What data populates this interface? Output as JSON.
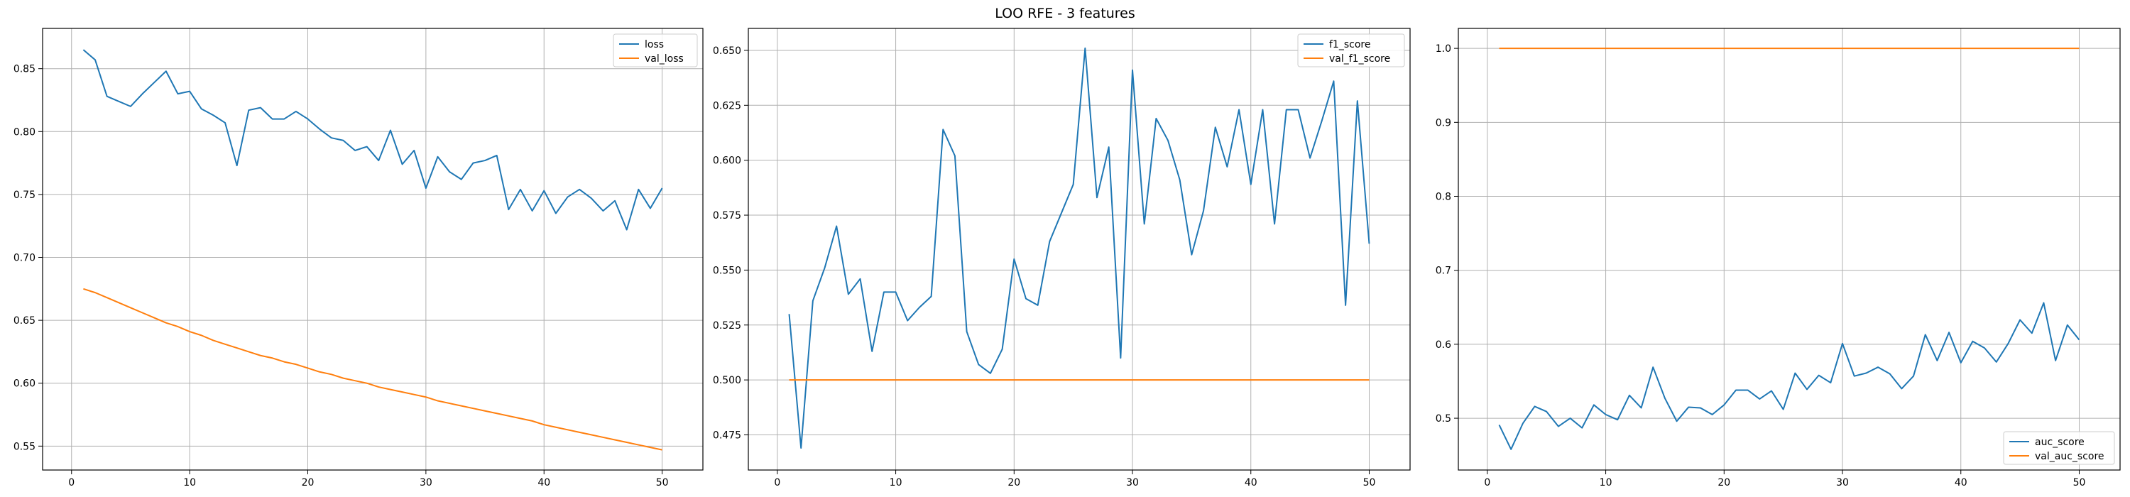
{
  "figure": {
    "title": "LOO RFE - 3 features"
  },
  "colors": {
    "series_blue": "#1f77b4",
    "series_orange": "#ff7f0e",
    "grid": "#b0b0b0",
    "axes": "#000000"
  },
  "chart_data": [
    {
      "type": "line",
      "title": "",
      "xlabel": "",
      "ylabel": "",
      "xlim": [
        -2.45,
        53.45
      ],
      "ylim": [
        0.531,
        0.882
      ],
      "xticks": [
        0,
        10,
        20,
        30,
        40,
        50
      ],
      "yticks": [
        0.55,
        0.6,
        0.65,
        0.7,
        0.75,
        0.8,
        0.85
      ],
      "ytick_labels": [
        "0.55",
        "0.60",
        "0.65",
        "0.70",
        "0.75",
        "0.80",
        "0.85"
      ],
      "grid": true,
      "legend_position": "upper right",
      "x": [
        1,
        2,
        3,
        4,
        5,
        6,
        7,
        8,
        9,
        10,
        11,
        12,
        13,
        14,
        15,
        16,
        17,
        18,
        19,
        20,
        21,
        22,
        23,
        24,
        25,
        26,
        27,
        28,
        29,
        30,
        31,
        32,
        33,
        34,
        35,
        36,
        37,
        38,
        39,
        40,
        41,
        42,
        43,
        44,
        45,
        46,
        47,
        48,
        49,
        50
      ],
      "series": [
        {
          "name": "loss",
          "color": "#1f77b4",
          "values": [
            0.865,
            0.857,
            0.828,
            0.824,
            0.82,
            0.83,
            0.839,
            0.848,
            0.83,
            0.832,
            0.818,
            0.813,
            0.807,
            0.773,
            0.817,
            0.819,
            0.81,
            0.81,
            0.816,
            0.81,
            0.802,
            0.795,
            0.793,
            0.785,
            0.788,
            0.777,
            0.801,
            0.774,
            0.785,
            0.755,
            0.78,
            0.768,
            0.762,
            0.775,
            0.777,
            0.781,
            0.738,
            0.754,
            0.737,
            0.753,
            0.735,
            0.748,
            0.754,
            0.747,
            0.737,
            0.745,
            0.722,
            0.754,
            0.739,
            0.755
          ]
        },
        {
          "name": "val_loss",
          "color": "#ff7f0e",
          "values": [
            0.675,
            0.672,
            0.668,
            0.664,
            0.66,
            0.656,
            0.652,
            0.648,
            0.645,
            0.641,
            0.638,
            0.634,
            0.631,
            0.628,
            0.625,
            0.622,
            0.62,
            0.617,
            0.615,
            0.612,
            0.609,
            0.607,
            0.604,
            0.602,
            0.6,
            0.597,
            0.595,
            0.593,
            0.591,
            0.589,
            0.586,
            0.584,
            0.582,
            0.58,
            0.578,
            0.576,
            0.574,
            0.572,
            0.57,
            0.567,
            0.565,
            0.563,
            0.561,
            0.559,
            0.557,
            0.555,
            0.553,
            0.551,
            0.549,
            0.547
          ]
        }
      ]
    },
    {
      "type": "line",
      "title": "",
      "xlabel": "",
      "ylabel": "",
      "xlim": [
        -2.45,
        53.45
      ],
      "ylim": [
        0.459,
        0.66
      ],
      "xticks": [
        0,
        10,
        20,
        30,
        40,
        50
      ],
      "yticks": [
        0.475,
        0.5,
        0.525,
        0.55,
        0.575,
        0.6,
        0.625,
        0.65
      ],
      "ytick_labels": [
        "0.475",
        "0.500",
        "0.525",
        "0.550",
        "0.575",
        "0.600",
        "0.625",
        "0.650"
      ],
      "grid": true,
      "legend_position": "upper right",
      "x": [
        1,
        2,
        3,
        4,
        5,
        6,
        7,
        8,
        9,
        10,
        11,
        12,
        13,
        14,
        15,
        16,
        17,
        18,
        19,
        20,
        21,
        22,
        23,
        24,
        25,
        26,
        27,
        28,
        29,
        30,
        31,
        32,
        33,
        34,
        35,
        36,
        37,
        38,
        39,
        40,
        41,
        42,
        43,
        44,
        45,
        46,
        47,
        48,
        49,
        50
      ],
      "series": [
        {
          "name": "f1_score",
          "color": "#1f77b4",
          "values": [
            0.53,
            0.469,
            0.536,
            0.551,
            0.57,
            0.539,
            0.546,
            0.513,
            0.54,
            0.54,
            0.527,
            0.533,
            0.538,
            0.614,
            0.602,
            0.522,
            0.507,
            0.503,
            0.514,
            0.555,
            0.537,
            0.534,
            0.563,
            0.576,
            0.589,
            0.651,
            0.583,
            0.606,
            0.51,
            0.641,
            0.571,
            0.619,
            0.609,
            0.591,
            0.557,
            0.577,
            0.615,
            0.597,
            0.623,
            0.589,
            0.623,
            0.571,
            0.623,
            0.623,
            0.601,
            0.618,
            0.636,
            0.534,
            0.627,
            0.562
          ]
        },
        {
          "name": "val_f1_score",
          "color": "#ff7f0e",
          "values": [
            0.5,
            0.5,
            0.5,
            0.5,
            0.5,
            0.5,
            0.5,
            0.5,
            0.5,
            0.5,
            0.5,
            0.5,
            0.5,
            0.5,
            0.5,
            0.5,
            0.5,
            0.5,
            0.5,
            0.5,
            0.5,
            0.5,
            0.5,
            0.5,
            0.5,
            0.5,
            0.5,
            0.5,
            0.5,
            0.5,
            0.5,
            0.5,
            0.5,
            0.5,
            0.5,
            0.5,
            0.5,
            0.5,
            0.5,
            0.5,
            0.5,
            0.5,
            0.5,
            0.5,
            0.5,
            0.5,
            0.5,
            0.5,
            0.5,
            0.5
          ]
        }
      ]
    },
    {
      "type": "line",
      "title": "",
      "xlabel": "",
      "ylabel": "",
      "xlim": [
        -2.45,
        53.45
      ],
      "ylim": [
        0.43,
        1.027
      ],
      "xticks": [
        0,
        10,
        20,
        30,
        40,
        50
      ],
      "yticks": [
        0.5,
        0.6,
        0.7,
        0.8,
        0.9,
        1.0
      ],
      "ytick_labels": [
        "0.5",
        "0.6",
        "0.7",
        "0.8",
        "0.9",
        "1.0"
      ],
      "grid": true,
      "legend_position": "lower right",
      "x": [
        1,
        2,
        3,
        4,
        5,
        6,
        7,
        8,
        9,
        10,
        11,
        12,
        13,
        14,
        15,
        16,
        17,
        18,
        19,
        20,
        21,
        22,
        23,
        24,
        25,
        26,
        27,
        28,
        29,
        30,
        31,
        32,
        33,
        34,
        35,
        36,
        37,
        38,
        39,
        40,
        41,
        42,
        43,
        44,
        45,
        46,
        47,
        48,
        49,
        50
      ],
      "series": [
        {
          "name": "auc_score",
          "color": "#1f77b4",
          "values": [
            0.491,
            0.458,
            0.493,
            0.516,
            0.509,
            0.489,
            0.5,
            0.487,
            0.518,
            0.505,
            0.498,
            0.531,
            0.514,
            0.569,
            0.527,
            0.496,
            0.515,
            0.514,
            0.505,
            0.518,
            0.538,
            0.538,
            0.526,
            0.537,
            0.512,
            0.561,
            0.539,
            0.558,
            0.548,
            0.601,
            0.557,
            0.561,
            0.569,
            0.56,
            0.54,
            0.557,
            0.613,
            0.578,
            0.616,
            0.575,
            0.604,
            0.595,
            0.576,
            0.601,
            0.633,
            0.615,
            0.656,
            0.578,
            0.626,
            0.606
          ]
        },
        {
          "name": "val_auc_score",
          "color": "#ff7f0e",
          "values": [
            1.0,
            1.0,
            1.0,
            1.0,
            1.0,
            1.0,
            1.0,
            1.0,
            1.0,
            1.0,
            1.0,
            1.0,
            1.0,
            1.0,
            1.0,
            1.0,
            1.0,
            1.0,
            1.0,
            1.0,
            1.0,
            1.0,
            1.0,
            1.0,
            1.0,
            1.0,
            1.0,
            1.0,
            1.0,
            1.0,
            1.0,
            1.0,
            1.0,
            1.0,
            1.0,
            1.0,
            1.0,
            1.0,
            1.0,
            1.0,
            1.0,
            1.0,
            1.0,
            1.0,
            1.0,
            1.0,
            1.0,
            1.0,
            1.0,
            1.0
          ]
        }
      ]
    }
  ]
}
